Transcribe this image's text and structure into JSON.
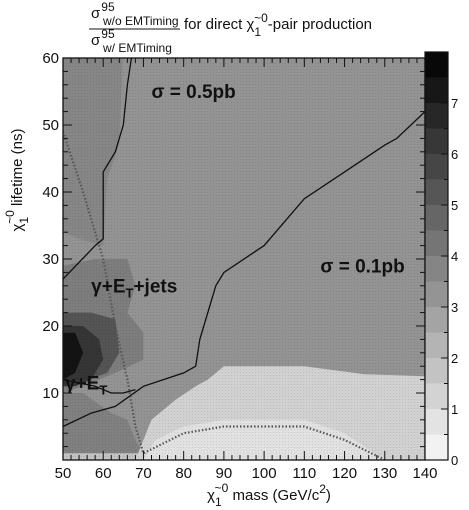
{
  "chart_data": {
    "type": "heatmap",
    "title": {
      "numerator": "σ",
      "numerator_sup": "95",
      "numerator_sub": "w/o EMTiming",
      "denominator": "σ",
      "denominator_sup": "95",
      "denominator_sub": "w/ EMTiming",
      "suffix_pre": "for direct ",
      "suffix_particle": "χ",
      "suffix_particle_sup": "~0",
      "suffix_particle_sub": "1",
      "suffix_post": "-pair production"
    },
    "xlabel": {
      "particle": "χ",
      "particle_sup": "~0",
      "particle_sub": "1",
      "text": " mass (GeV/c",
      "sup": "2",
      "close": ")"
    },
    "ylabel": {
      "particle": "χ",
      "particle_sup": "~0",
      "particle_sub": "1",
      "text": " lifetime (ns)"
    },
    "xlim": [
      50,
      140
    ],
    "ylim": [
      0,
      60
    ],
    "xticks": [
      "50",
      "60",
      "70",
      "80",
      "90",
      "100",
      "110",
      "120",
      "130",
      "140"
    ],
    "yticks": [
      "10",
      "20",
      "30",
      "40",
      "50",
      "60"
    ],
    "colorbar": {
      "range": [
        0,
        8
      ],
      "ticks": [
        "0",
        "1",
        "2",
        "3",
        "4",
        "5",
        "6",
        "7"
      ]
    },
    "grid": false,
    "background_level": 3.3,
    "regions": [
      {
        "name": "upper-left band",
        "level": 3.7,
        "points": [
          [
            50,
            34
          ],
          [
            54,
            33
          ],
          [
            60,
            32
          ],
          [
            61,
            42
          ],
          [
            64,
            47
          ],
          [
            65,
            62
          ],
          [
            50,
            62
          ]
        ]
      },
      {
        "name": "gamma+MET+jets band",
        "level": 4.0,
        "points": [
          [
            50,
            29
          ],
          [
            58,
            30
          ],
          [
            63,
            30
          ],
          [
            66,
            30
          ],
          [
            68,
            26
          ],
          [
            66,
            22
          ],
          [
            70,
            19
          ],
          [
            70,
            15
          ],
          [
            63,
            13
          ],
          [
            55,
            11
          ],
          [
            50,
            10
          ]
        ]
      },
      {
        "name": "mid dark",
        "level": 5.3,
        "points": [
          [
            50,
            22
          ],
          [
            57,
            22
          ],
          [
            63,
            21
          ],
          [
            64,
            16
          ],
          [
            61,
            13
          ],
          [
            56,
            12
          ],
          [
            50,
            12
          ]
        ]
      },
      {
        "name": "dark core",
        "level": 6.3,
        "points": [
          [
            50,
            20
          ],
          [
            55,
            20
          ],
          [
            59,
            18
          ],
          [
            60,
            15
          ],
          [
            57,
            12
          ],
          [
            53,
            11
          ],
          [
            50,
            11
          ]
        ]
      },
      {
        "name": "black spot",
        "level": 7.4,
        "points": [
          [
            50,
            19
          ],
          [
            53,
            19
          ],
          [
            55,
            16
          ],
          [
            53,
            13
          ],
          [
            50,
            12
          ]
        ]
      },
      {
        "name": "low left band",
        "level": 3.9,
        "points": [
          [
            50,
            10
          ],
          [
            55,
            10
          ],
          [
            62,
            7
          ],
          [
            66,
            6
          ],
          [
            68,
            3
          ],
          [
            70,
            1
          ],
          [
            50,
            1
          ]
        ]
      },
      {
        "name": "bottom pale strip",
        "level": 1.8,
        "points": [
          [
            50,
            1
          ],
          [
            70,
            1
          ],
          [
            70,
            0
          ],
          [
            50,
            0
          ]
        ]
      },
      {
        "name": "right light region",
        "level": 1.3,
        "points": [
          [
            86,
            12
          ],
          [
            90,
            14
          ],
          [
            110,
            14
          ],
          [
            125,
            12.8
          ],
          [
            140,
            12.5
          ],
          [
            140,
            0
          ],
          [
            68,
            0
          ],
          [
            72,
            6
          ],
          [
            78,
            9
          ],
          [
            83,
            11
          ]
        ]
      },
      {
        "name": "lower right strip",
        "level": 0.8,
        "points": [
          [
            70,
            0
          ],
          [
            73,
            3
          ],
          [
            80,
            5
          ],
          [
            90,
            6
          ],
          [
            110,
            6
          ],
          [
            120,
            4
          ],
          [
            125,
            2
          ],
          [
            130,
            0
          ]
        ]
      }
    ],
    "contours": [
      {
        "label": "σ = 0.5pb",
        "points": [
          [
            50,
            27
          ],
          [
            58,
            32
          ],
          [
            60,
            33
          ],
          [
            60,
            43
          ],
          [
            63,
            46
          ],
          [
            65,
            50
          ],
          [
            66,
            56
          ],
          [
            67,
            60
          ]
        ]
      },
      {
        "label": "σ = 0.1pb",
        "points": [
          [
            50,
            5
          ],
          [
            57,
            7
          ],
          [
            63,
            8
          ],
          [
            70,
            11
          ],
          [
            80,
            13
          ],
          [
            83,
            14
          ],
          [
            84,
            18
          ],
          [
            88,
            26
          ],
          [
            90,
            28
          ],
          [
            100,
            32
          ],
          [
            110,
            39
          ],
          [
            120,
            43
          ],
          [
            130,
            47
          ],
          [
            133,
            48
          ],
          [
            140,
            52
          ]
        ]
      },
      {
        "label": "",
        "points": [
          [
            50,
            12
          ],
          [
            58,
            11
          ],
          [
            62,
            10
          ],
          [
            65,
            10
          ],
          [
            68,
            10.5
          ]
        ]
      }
    ],
    "dotted_boundary": {
      "points": [
        [
          50,
          49
        ],
        [
          55,
          40
        ],
        [
          60,
          30
        ],
        [
          63,
          20
        ],
        [
          66,
          12
        ],
        [
          68,
          5
        ],
        [
          70,
          1
        ],
        [
          80,
          4
        ],
        [
          90,
          5
        ],
        [
          110,
          5
        ],
        [
          120,
          3
        ],
        [
          130,
          0
        ]
      ]
    },
    "annotations": [
      {
        "text": "σ = 0.5pb",
        "x": 72,
        "y": 54
      },
      {
        "text": "σ = 0.1pb",
        "x": 114,
        "y": 28
      },
      {
        "text": "γ+",
        "sub_text": "",
        "emph": "E",
        "emph_sub": "T",
        "tail": "+jets",
        "x": 57,
        "y": 25
      },
      {
        "text": "γ+",
        "sub_text": "",
        "emph": "E",
        "emph_sub": "T",
        "tail": "",
        "x": 50.5,
        "y": 10.5
      }
    ]
  }
}
